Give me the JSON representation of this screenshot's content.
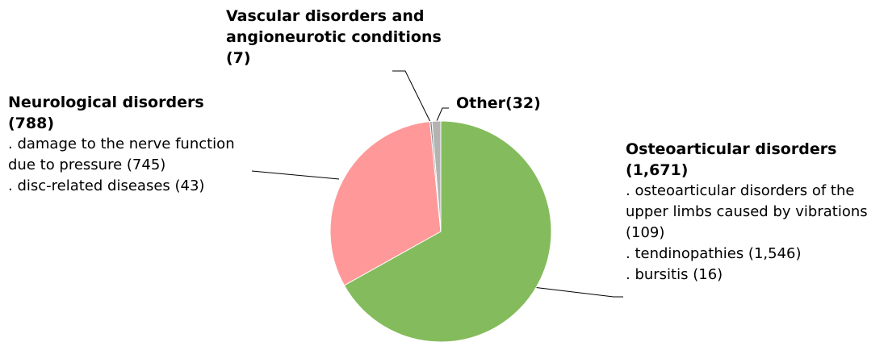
{
  "chart_data": {
    "type": "pie",
    "categories": [
      "Osteoarticular disorders",
      "Neurological disorders",
      "Vascular disorders and angioneurotic conditions",
      "Other"
    ],
    "values": [
      1671,
      788,
      7,
      32
    ],
    "value_labels": [
      "(1,671)",
      "(788)",
      "(7)",
      "(32)"
    ],
    "colors": [
      "#84bb5c",
      "#ff9999",
      "#7f7f7f",
      "#b3b3b3"
    ],
    "details": [
      [
        ". osteoarticular disorders of the upper limbs caused by vibrations (109)",
        ". tendinopathies (1,546)",
        ". bursitis (16)"
      ],
      [
        ". damage to the nerve function due to pressure (745)",
        ". disc-related diseases (43)"
      ],
      [],
      []
    ]
  }
}
